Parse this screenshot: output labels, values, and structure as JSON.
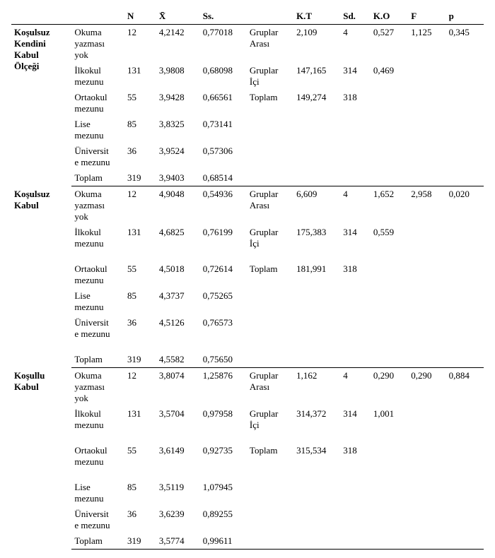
{
  "headers": {
    "blank1": "",
    "blank2": "",
    "n": "N",
    "xbar": "X̄",
    "ss": "Ss.",
    "blank3": "",
    "kt": "K.T",
    "sd": "Sd.",
    "ko": "K.O",
    "f": "F",
    "p": "p"
  },
  "sections": [
    {
      "label_lines": [
        "Koşulsuz",
        "Kendini",
        "Kabul",
        "Ölçeği"
      ],
      "rows": [
        {
          "grp": [
            "Okuma",
            "yazması",
            "yok"
          ],
          "n": "12",
          "x": "4,2142",
          "ss": "0,77018",
          "src": [
            "Gruplar",
            "Arası"
          ],
          "kt": "2,109",
          "sd": "4",
          "ko": "0,527",
          "f": "1,125",
          "p": "0,345"
        },
        {
          "grp": [
            "İlkokul",
            "mezunu"
          ],
          "n": "131",
          "x": "3,9808",
          "ss": "0,68098",
          "src": [
            "Gruplar",
            "İçi"
          ],
          "kt": "147,165",
          "sd": "314",
          "ko": "0,469",
          "f": "",
          "p": ""
        },
        {
          "grp": [
            "Ortaokul",
            "mezunu"
          ],
          "n": "55",
          "x": "3,9428",
          "ss": "0,66561",
          "src": [
            "Toplam"
          ],
          "kt": "149,274",
          "sd": "318",
          "ko": "",
          "f": "",
          "p": ""
        },
        {
          "grp": [
            "Lise",
            "mezunu"
          ],
          "n": "85",
          "x": "3,8325",
          "ss": "0,73141",
          "src": [],
          "kt": "",
          "sd": "",
          "ko": "",
          "f": "",
          "p": ""
        },
        {
          "grp": [
            "Üniversit",
            "e mezunu"
          ],
          "n": "36",
          "x": "3,9524",
          "ss": "0,57306",
          "src": [],
          "kt": "",
          "sd": "",
          "ko": "",
          "f": "",
          "p": ""
        },
        {
          "grp": [
            "Toplam"
          ],
          "n": "319",
          "x": "3,9403",
          "ss": "0,68514",
          "src": [],
          "kt": "",
          "sd": "",
          "ko": "",
          "f": "",
          "p": ""
        }
      ]
    },
    {
      "label_lines": [
        "Koşulsuz",
        "Kabul"
      ],
      "rows": [
        {
          "grp": [
            "Okuma",
            "yazması",
            "yok"
          ],
          "n": "12",
          "x": "4,9048",
          "ss": "0,54936",
          "src": [
            "Gruplar",
            "Arası"
          ],
          "kt": "6,609",
          "sd": "4",
          "ko": "1,652",
          "f": "2,958",
          "p": "0,020",
          "gap": "big"
        },
        {
          "grp": [
            "İlkokul",
            "mezunu"
          ],
          "n": "131",
          "x": "4,6825",
          "ss": "0,76199",
          "src": [
            "Gruplar",
            "İçi"
          ],
          "kt": "175,383",
          "sd": "314",
          "ko": "0,559",
          "f": "",
          "p": "",
          "gap": "big"
        },
        {
          "grp": [
            "Ortaokul",
            "mezunu"
          ],
          "n": "55",
          "x": "4,5018",
          "ss": "0,72614",
          "src": [
            "Toplam"
          ],
          "kt": "181,991",
          "sd": "318",
          "ko": "",
          "f": "",
          "p": ""
        },
        {
          "grp": [
            "Lise",
            "mezunu"
          ],
          "n": "85",
          "x": "4,3737",
          "ss": "0,75265",
          "src": [],
          "kt": "",
          "sd": "",
          "ko": "",
          "f": "",
          "p": ""
        },
        {
          "grp": [
            "Üniversit",
            "e mezunu"
          ],
          "n": "36",
          "x": "4,5126",
          "ss": "0,76573",
          "src": [],
          "kt": "",
          "sd": "",
          "ko": "",
          "f": "",
          "p": "",
          "gap": "big"
        },
        {
          "grp": [
            "Toplam"
          ],
          "n": "319",
          "x": "4,5582",
          "ss": "0,75650",
          "src": [],
          "kt": "",
          "sd": "",
          "ko": "",
          "f": "",
          "p": ""
        }
      ]
    },
    {
      "label_lines": [
        "Koşullu",
        "Kabul"
      ],
      "rows": [
        {
          "grp": [
            "Okuma",
            "yazması",
            "yok"
          ],
          "n": "12",
          "x": "3,8074",
          "ss": "1,25876",
          "src": [
            "Gruplar",
            "Arası"
          ],
          "kt": "1,162",
          "sd": "4",
          "ko": "0,290",
          "f": "0,290",
          "p": "0,884"
        },
        {
          "grp": [
            "İlkokul",
            "mezunu"
          ],
          "n": "131",
          "x": "3,5704",
          "ss": "0,97958",
          "src": [
            "Gruplar",
            "İçi"
          ],
          "kt": "314,372",
          "sd": "314",
          "ko": "1,001",
          "f": "",
          "p": "",
          "gap": "big"
        },
        {
          "grp": [
            "Ortaokul",
            "mezunu"
          ],
          "n": "55",
          "x": "3,6149",
          "ss": "0,92735",
          "src": [
            "Toplam"
          ],
          "kt": "315,534",
          "sd": "318",
          "ko": "",
          "f": "",
          "p": "",
          "gap": "big"
        },
        {
          "grp": [
            "Lise",
            "mezunu"
          ],
          "n": "85",
          "x": "3,5119",
          "ss": "1,07945",
          "src": [],
          "kt": "",
          "sd": "",
          "ko": "",
          "f": "",
          "p": ""
        },
        {
          "grp": [
            "Üniversit",
            "e mezunu"
          ],
          "n": "36",
          "x": "3,6239",
          "ss": "0,89255",
          "src": [],
          "kt": "",
          "sd": "",
          "ko": "",
          "f": "",
          "p": ""
        },
        {
          "grp": [
            "Toplam"
          ],
          "n": "319",
          "x": "3,5774",
          "ss": "0,99611",
          "src": [],
          "kt": "",
          "sd": "",
          "ko": "",
          "f": "",
          "p": ""
        }
      ]
    }
  ]
}
